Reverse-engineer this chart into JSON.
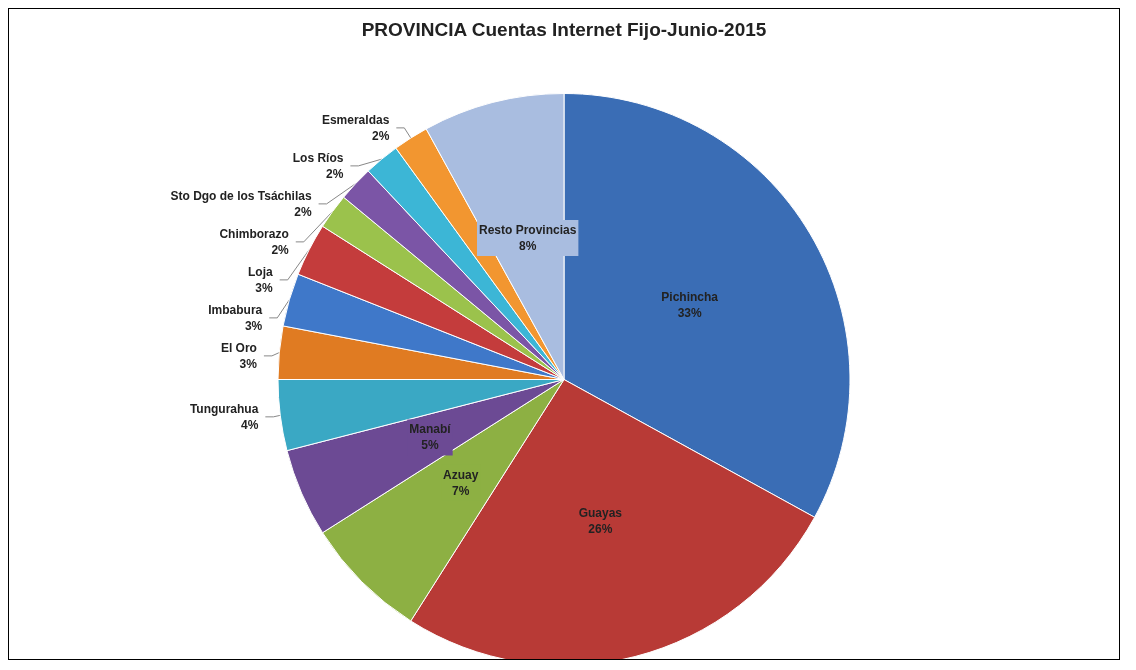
{
  "chart_data": {
    "type": "pie",
    "title": "PROVINCIA Cuentas Internet Fijo-Junio-2015",
    "categories": [
      "Pichincha",
      "Guayas",
      "Azuay",
      "Manabí",
      "Tungurahua",
      "El Oro",
      "Imbabura",
      "Loja",
      "Chimborazo",
      "Sto Dgo de los Tsáchilas",
      "Los Ríos",
      "Esmeraldas",
      "Resto Provincias"
    ],
    "values": [
      33,
      26,
      7,
      5,
      4,
      3,
      3,
      3,
      2,
      2,
      2,
      2,
      8
    ],
    "colors": [
      "#3a6db5",
      "#b83a36",
      "#8db043",
      "#6c4a94",
      "#3aa8c4",
      "#e07b22",
      "#3f78c9",
      "#c43c3c",
      "#9bc24c",
      "#7b55a6",
      "#3cb6d6",
      "#f29630",
      "#a9bde0"
    ],
    "value_labels": [
      "33%",
      "26%",
      "7%",
      "5%",
      "4%",
      "3%",
      "3%",
      "3%",
      "2%",
      "2%",
      "2%",
      "2%",
      "8%"
    ],
    "legend": false
  }
}
